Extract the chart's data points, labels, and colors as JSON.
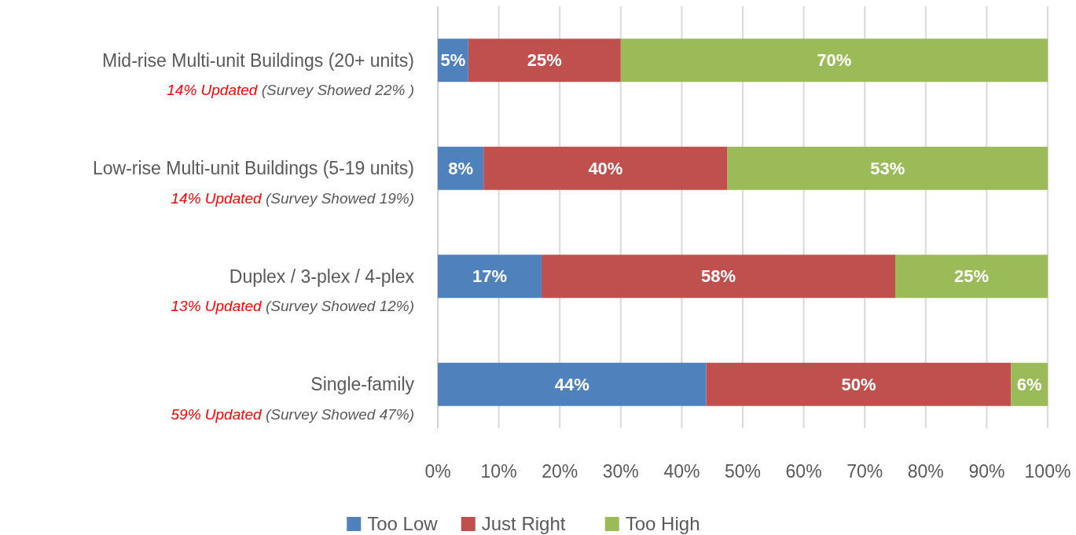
{
  "chart_data": {
    "type": "bar",
    "orientation": "horizontal",
    "stacked": true,
    "categories": [
      "Mid-rise Multi-unit Buildings (20+ units)",
      "Low-rise Multi-unit Buildings (5-19 units)",
      "Duplex / 3-plex / 4-plex",
      "Single-family"
    ],
    "series": [
      {
        "name": "Too Low",
        "color": "#4f81bd",
        "values": [
          5,
          7.5,
          17,
          44
        ],
        "value_labels": [
          "5%",
          "8%",
          "17%",
          "44%"
        ]
      },
      {
        "name": "Just Right",
        "color": "#c0504d",
        "values": [
          25,
          40,
          58,
          50
        ],
        "value_labels": [
          "25%",
          "40%",
          "58%",
          "50%"
        ]
      },
      {
        "name": "Too High",
        "color": "#9bbb59",
        "values": [
          70,
          52.5,
          25,
          6
        ],
        "value_labels": [
          "70%",
          "53%",
          "25%",
          "6%"
        ]
      }
    ],
    "annotations": [
      "14% Updated (Survey Showed 22% )",
      "14% Updated (Survey Showed 19%)",
      "13% Updated (Survey Showed 12%)",
      "59% Updated (Survey Showed 47%)"
    ],
    "xlim": [
      0,
      100
    ],
    "xticks": [
      {
        "value": 0,
        "label": "0%"
      },
      {
        "value": 10,
        "label": "10%"
      },
      {
        "value": 20,
        "label": "20%"
      },
      {
        "value": 30,
        "label": "30%"
      },
      {
        "value": 40,
        "label": "40%"
      },
      {
        "value": 50,
        "label": "50%"
      },
      {
        "value": 60,
        "label": "60%"
      },
      {
        "value": 70,
        "label": "70%"
      },
      {
        "value": 80,
        "label": "80%"
      },
      {
        "value": 90,
        "label": "90%"
      },
      {
        "value": 100,
        "label": "100%"
      }
    ],
    "grid": "x",
    "legend": "bottom"
  }
}
